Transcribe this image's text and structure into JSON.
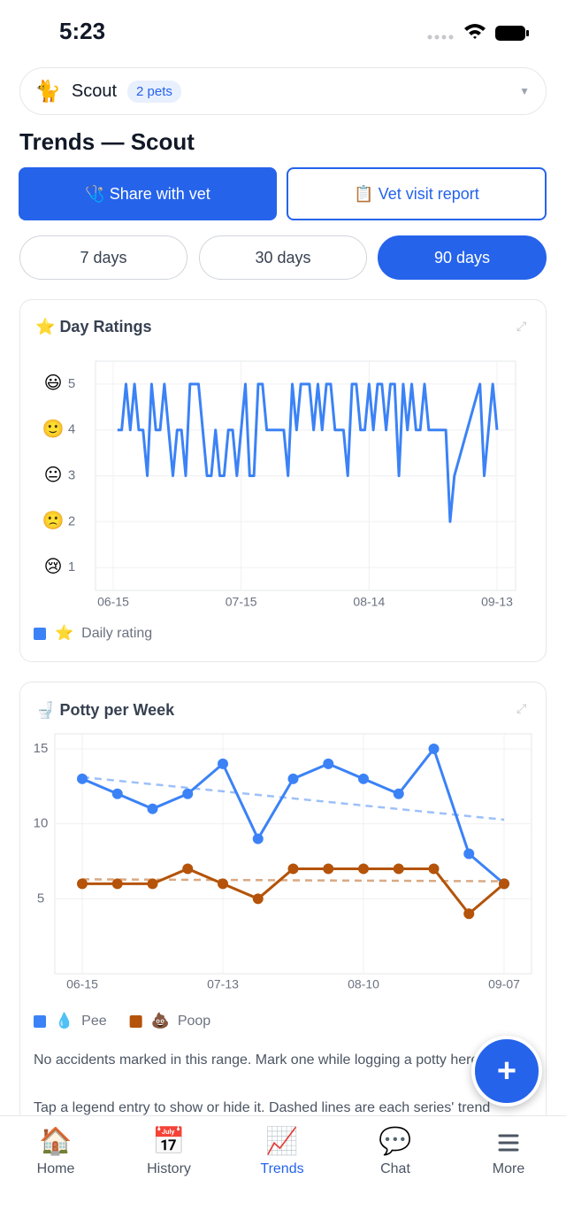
{
  "status": {
    "time": "5:23"
  },
  "selector": {
    "icon": "🐈",
    "name": "Scout",
    "badge": "2 pets"
  },
  "heading": "Trends — Scout",
  "actions": [
    {
      "icon": "🩺",
      "label": "Share with vet"
    },
    {
      "icon": "📋",
      "label": "Vet visit report"
    }
  ],
  "ranges": {
    "options": [
      "7 days",
      "30 days",
      "90 days"
    ],
    "selected": 2
  },
  "chart_data": [
    {
      "type": "line",
      "icon": "⭐",
      "title": "Day Ratings",
      "x": [
        "06-16",
        "06-17",
        "06-18",
        "06-19",
        "06-20",
        "06-21",
        "06-22",
        "06-23",
        "06-24",
        "06-25",
        "06-26",
        "06-27",
        "06-28",
        "06-29",
        "06-30",
        "07-01",
        "07-02",
        "07-03",
        "07-04",
        "07-05",
        "07-06",
        "07-07",
        "07-08",
        "07-09",
        "07-10",
        "07-11",
        "07-12",
        "07-13",
        "07-14",
        "07-15",
        "07-16",
        "07-17",
        "07-18",
        "07-19",
        "07-20",
        "07-21",
        "07-22",
        "07-23",
        "07-24",
        "07-25",
        "07-26",
        "07-27",
        "07-28",
        "07-29",
        "07-30",
        "07-31",
        "08-01",
        "08-02",
        "08-03",
        "08-04",
        "08-05",
        "08-06",
        "08-07",
        "08-08",
        "08-09",
        "08-10",
        "08-11",
        "08-12",
        "08-13",
        "08-14",
        "08-15",
        "08-16",
        "08-17",
        "08-18",
        "08-19",
        "08-20",
        "08-21",
        "08-22",
        "08-23",
        "08-24",
        "08-25",
        "08-26",
        "08-27",
        "08-28",
        "08-29",
        "08-30",
        "08-31",
        "09-01",
        "09-02",
        "09-03",
        "09-09",
        "09-10",
        "09-12",
        "09-13"
      ],
      "series": [
        {
          "name": "Daily rating",
          "icon": "⭐",
          "color": "#3b82f6",
          "values": [
            4,
            4,
            5,
            4,
            5,
            4,
            4,
            3,
            5,
            4,
            4,
            5,
            4,
            3,
            4,
            4,
            3,
            5,
            5,
            5,
            4,
            3,
            3,
            4,
            3,
            3,
            4,
            4,
            3,
            4,
            5,
            3,
            3,
            5,
            5,
            4,
            4,
            4,
            4,
            4,
            3,
            5,
            4,
            5,
            5,
            5,
            4,
            5,
            4,
            5,
            5,
            4,
            4,
            4,
            3,
            5,
            5,
            4,
            4,
            5,
            4,
            5,
            5,
            4,
            5,
            5,
            3,
            5,
            4,
            5,
            4,
            4,
            5,
            4,
            4,
            4,
            4,
            4,
            2,
            3,
            5,
            3,
            5,
            4
          ]
        }
      ],
      "xlim": [
        "06-15",
        "09-13"
      ],
      "xticks": [
        "06-15",
        "07-15",
        "08-14",
        "09-13"
      ],
      "ylim": [
        0.5,
        5.5
      ],
      "yticks": [
        1,
        2,
        3,
        4,
        5
      ],
      "ytick_icons": [
        "😢",
        "🙁",
        "😐",
        "🙂",
        "😃"
      ],
      "grid": true,
      "markers": false,
      "trend": false
    },
    {
      "type": "line",
      "icon": "🚽",
      "title": "Potty per Week",
      "x": [
        "06-15",
        "06-22",
        "06-29",
        "07-06",
        "07-13",
        "07-20",
        "07-27",
        "08-03",
        "08-10",
        "08-17",
        "08-24",
        "08-31",
        "09-07"
      ],
      "series": [
        {
          "name": "Pee",
          "icon": "💧",
          "color": "#3b82f6",
          "values": [
            13,
            12,
            11,
            12,
            14,
            9,
            13,
            14,
            13,
            12,
            15,
            8,
            6
          ]
        },
        {
          "name": "Poop",
          "icon": "💩",
          "color": "#b45309",
          "values": [
            6,
            6,
            6,
            7,
            6,
            5,
            7,
            7,
            7,
            7,
            7,
            4,
            6
          ]
        }
      ],
      "xlim": [
        "06-15",
        "09-07"
      ],
      "xticks": [
        "06-15",
        "07-13",
        "08-10",
        "09-07"
      ],
      "ylim": [
        0,
        16
      ],
      "yticks": [
        5,
        10,
        15
      ],
      "grid": true,
      "markers": true,
      "trend": true,
      "notes": [
        "No accidents marked in this range. Mark one while logging a potty here.",
        "Tap a legend entry to show or hide it. Dashed lines are each series' trend"
      ]
    }
  ],
  "tabs": {
    "items": [
      {
        "icon": "🏠",
        "label": "Home"
      },
      {
        "icon": "📅",
        "label": "History"
      },
      {
        "icon": "📈",
        "label": "Trends"
      },
      {
        "icon": "💬",
        "label": "Chat"
      },
      {
        "label": "More"
      }
    ],
    "selected": 2
  },
  "fab": "+"
}
